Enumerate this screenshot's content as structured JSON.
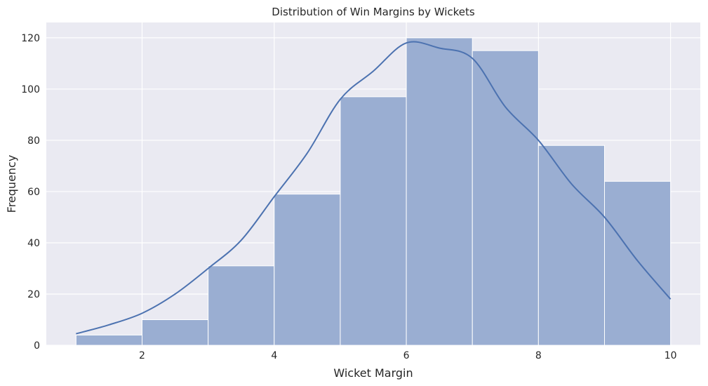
{
  "chart_data": {
    "type": "bar",
    "title": "Distribution of Win Margins by Wickets",
    "xlabel": "Wicket Margin",
    "ylabel": "Frequency",
    "xlim": [
      0.55,
      10.45
    ],
    "ylim": [
      0,
      126
    ],
    "xticks": [
      2,
      4,
      6,
      8,
      10
    ],
    "yticks": [
      0,
      20,
      40,
      60,
      80,
      100,
      120
    ],
    "grid": true,
    "bins": [
      {
        "x0": 1,
        "x1": 2,
        "value": 4
      },
      {
        "x0": 2,
        "x1": 3,
        "value": 10
      },
      {
        "x0": 3,
        "x1": 4,
        "value": 31
      },
      {
        "x0": 4,
        "x1": 5,
        "value": 59
      },
      {
        "x0": 5,
        "x1": 6,
        "value": 97
      },
      {
        "x0": 6,
        "x1": 7,
        "value": 120
      },
      {
        "x0": 7,
        "x1": 8,
        "value": 115
      },
      {
        "x0": 8,
        "x1": 9,
        "value": 78
      },
      {
        "x0": 9,
        "x1": 10,
        "value": 64
      }
    ],
    "kde": {
      "x": [
        1,
        1.5,
        2,
        2.5,
        3,
        3.5,
        4,
        4.5,
        5,
        5.5,
        6,
        6.5,
        7,
        7.5,
        8,
        8.5,
        9,
        9.5,
        10
      ],
      "y": [
        4.5,
        8,
        12.5,
        20,
        30,
        41,
        58,
        75,
        96,
        107,
        118,
        116,
        112,
        93,
        80,
        63,
        50,
        33,
        18
      ]
    },
    "colors": {
      "bar_fill": "#9aaed2",
      "bar_edge": "#ffffff",
      "kde_line": "#4c72b0",
      "plot_background": "#eaeaf2",
      "grid": "#ffffff"
    }
  }
}
